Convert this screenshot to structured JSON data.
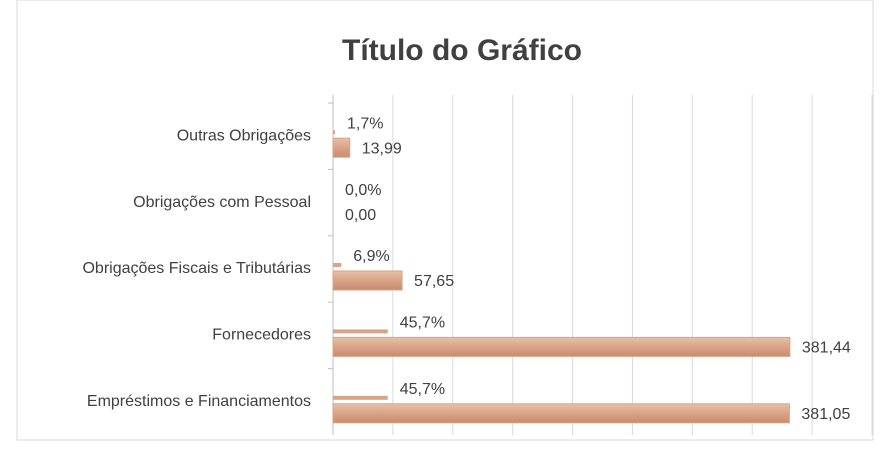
{
  "chart_data": {
    "type": "bar",
    "orientation": "horizontal",
    "title": "Título do Gráfico",
    "categories": [
      "Outras Obrigações",
      "Obrigações com Pessoal",
      "Obrigações Fiscais e Tributárias",
      "Fornecedores",
      "Empréstimos e Financiamentos"
    ],
    "series": [
      {
        "color": "#d9a386",
        "values": [
          1.7,
          0.0,
          6.9,
          45.7,
          45.7
        ],
        "value_labels": [
          "1,7%",
          "0,0%",
          "6,9%",
          "45,7%",
          "45,7%"
        ]
      },
      {
        "color": "#d9a386",
        "values": [
          13.99,
          0.0,
          57.65,
          381.44,
          381.05
        ],
        "value_labels": [
          "13,99",
          "0,00",
          "57,65",
          "381,44",
          "381,05"
        ]
      }
    ],
    "xlim": [
      0,
      450
    ],
    "xticks": [
      0,
      50,
      100,
      150,
      200,
      250,
      300,
      350,
      400,
      450
    ],
    "grid": true
  }
}
